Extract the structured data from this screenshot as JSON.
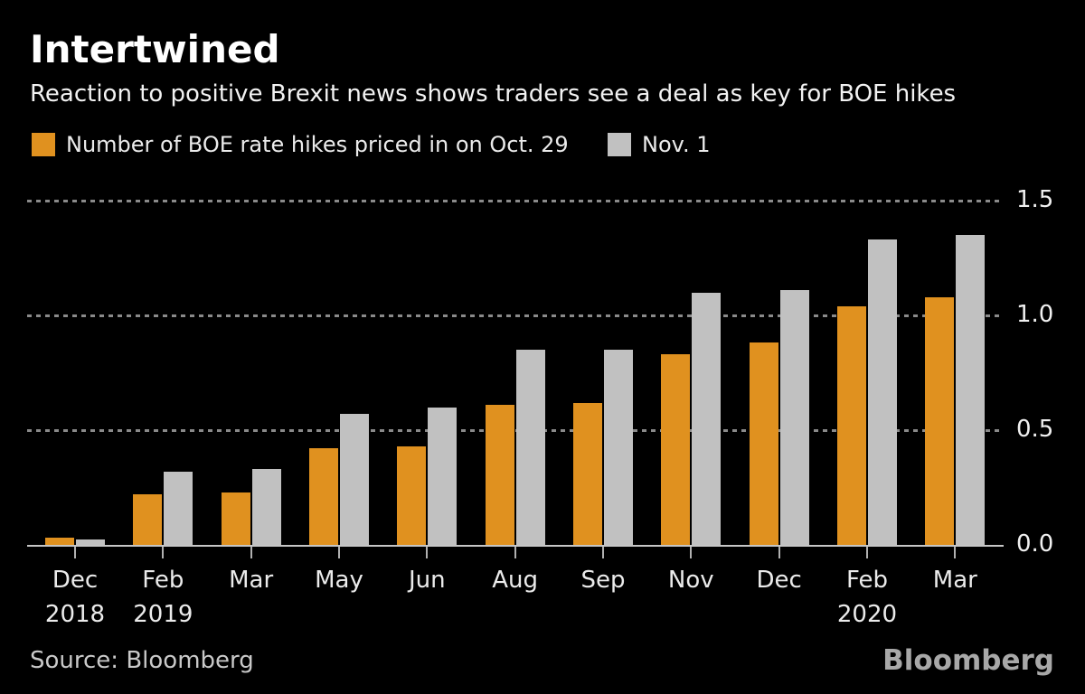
{
  "header": {
    "title": "Intertwined",
    "subtitle": "Reaction to positive Brexit news shows traders see a deal as key for BOE hikes"
  },
  "legend": {
    "items": [
      {
        "label": "Number of BOE rate hikes priced in on Oct. 29",
        "color": "#e0911f"
      },
      {
        "label": "Nov. 1",
        "color": "#c1c1c1"
      }
    ]
  },
  "chart_data": {
    "type": "bar",
    "title": "Intertwined",
    "subtitle": "Reaction to positive Brexit news shows traders see a deal as key for BOE hikes",
    "categories": [
      "Dec 2018",
      "Feb 2019",
      "Mar 2019",
      "May 2019",
      "Jun 2019",
      "Aug 2019",
      "Sep 2019",
      "Nov 2019",
      "Dec 2019",
      "Feb 2020",
      "Mar 2020"
    ],
    "x_tick_months": [
      "Dec",
      "Feb",
      "Mar",
      "May",
      "Jun",
      "Aug",
      "Sep",
      "Nov",
      "Dec",
      "Feb",
      "Mar"
    ],
    "x_tick_years": [
      "2018",
      "2019",
      "",
      "",
      "",
      "",
      "",
      "",
      "",
      "2020",
      ""
    ],
    "series": [
      {
        "name": "Number of BOE rate hikes priced in on Oct. 29",
        "color": "#e0911f",
        "values": [
          0.03,
          0.22,
          0.23,
          0.42,
          0.43,
          0.61,
          0.62,
          0.83,
          0.88,
          1.04,
          1.08
        ]
      },
      {
        "name": "Nov. 1",
        "color": "#c1c1c1",
        "values": [
          0.025,
          0.32,
          0.33,
          0.57,
          0.6,
          0.85,
          0.85,
          1.1,
          1.11,
          1.33,
          1.35
        ]
      }
    ],
    "xlabel": "",
    "ylabel": "",
    "ylim": [
      0,
      1.5
    ],
    "yticks": [
      {
        "v": 0.0,
        "label": "0.0"
      },
      {
        "v": 0.5,
        "label": "0.5"
      },
      {
        "v": 1.0,
        "label": "1.0"
      },
      {
        "v": 1.5,
        "label": "1.5"
      }
    ],
    "grid": "horizontal-dotted",
    "legend_position": "top-left",
    "y_axis_side": "right"
  },
  "footer": {
    "source": "Source: Bloomberg",
    "logo": "Bloomberg"
  },
  "colors": {
    "background": "#000000",
    "bar_oct29": "#e0911f",
    "bar_nov1": "#c1c1c1",
    "gridline": "#8a8a8a",
    "axis_line": "#c6c6c6",
    "text": "#f2f2f2"
  }
}
